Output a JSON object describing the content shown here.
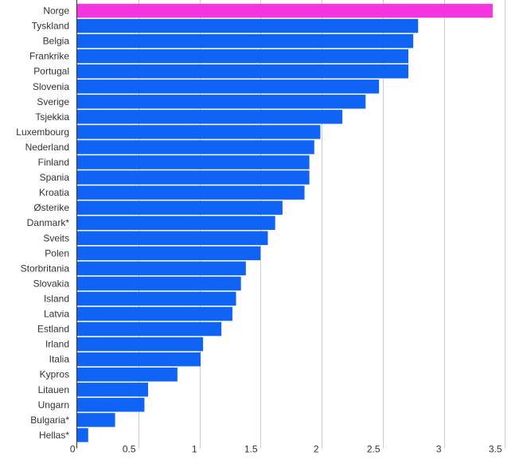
{
  "chart_data": {
    "type": "bar",
    "orientation": "horizontal",
    "title": "",
    "xlabel": "",
    "ylabel": "",
    "xlim": [
      0,
      3.7
    ],
    "x_ticks": [
      0,
      0.5,
      1,
      1.5,
      2,
      2.5,
      3,
      3.5
    ],
    "x_tick_labels": [
      "0",
      "0.5",
      "1",
      "1.5",
      "2",
      "2.5",
      "3",
      "3.5"
    ],
    "grid": true,
    "legend": "none",
    "colors": {
      "default_bar": "#0f64f5",
      "highlight_bar": "#f535e0"
    },
    "highlight_categories": [
      "Norge"
    ],
    "categories": [
      "Norge",
      "Tyskland",
      "Belgia",
      "Frankrike",
      "Portugal",
      "Slovenia",
      "Sverige",
      "Tsjekkia",
      "Luxembourg",
      "Nederland",
      "Finland",
      "Spania",
      "Kroatia",
      "Østerike",
      "Danmark*",
      "Sveits",
      "Polen",
      "Storbritania",
      "Slovakia",
      "Island",
      "Latvia",
      "Estland",
      "Irland",
      "Italia",
      "Kypros",
      "Litauen",
      "Ungarn",
      "Bulgaria*",
      "Hellas*"
    ],
    "values": [
      3.4,
      2.79,
      2.75,
      2.71,
      2.71,
      2.47,
      2.36,
      2.17,
      1.99,
      1.94,
      1.9,
      1.9,
      1.86,
      1.68,
      1.62,
      1.56,
      1.5,
      1.38,
      1.34,
      1.3,
      1.27,
      1.18,
      1.03,
      1.01,
      0.82,
      0.58,
      0.55,
      0.31,
      0.09
    ]
  }
}
